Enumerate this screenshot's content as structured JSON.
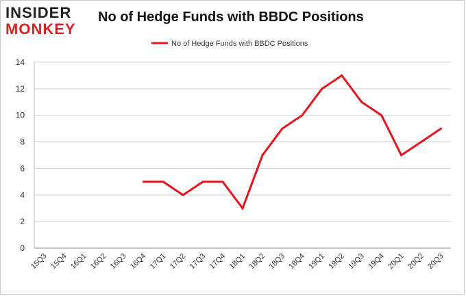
{
  "logo": {
    "line1": "INSIDER",
    "line2": "MONKEY"
  },
  "chart_data": {
    "type": "line",
    "title": "No of Hedge Funds with BBDC Positions",
    "categories": [
      "15Q3",
      "15Q4",
      "16Q1",
      "16Q2",
      "16Q3",
      "16Q4",
      "17Q1",
      "17Q2",
      "17Q3",
      "17Q4",
      "18Q1",
      "18Q2",
      "18Q3",
      "18Q4",
      "19Q1",
      "19Q2",
      "19Q3",
      "19Q4",
      "20Q1",
      "20Q2",
      "20Q3"
    ],
    "series": [
      {
        "name": "No of Hedge Funds with BBDC Positions",
        "color": "#e8141b",
        "values": [
          null,
          null,
          null,
          null,
          null,
          5,
          5,
          4,
          5,
          5,
          3,
          7,
          9,
          10,
          12,
          13,
          11,
          10,
          7,
          8,
          9
        ]
      }
    ],
    "yticks": [
      0,
      2,
      4,
      6,
      8,
      10,
      12,
      14
    ],
    "ylim": [
      0,
      14
    ],
    "grid": true,
    "legend_position": "top-center"
  }
}
